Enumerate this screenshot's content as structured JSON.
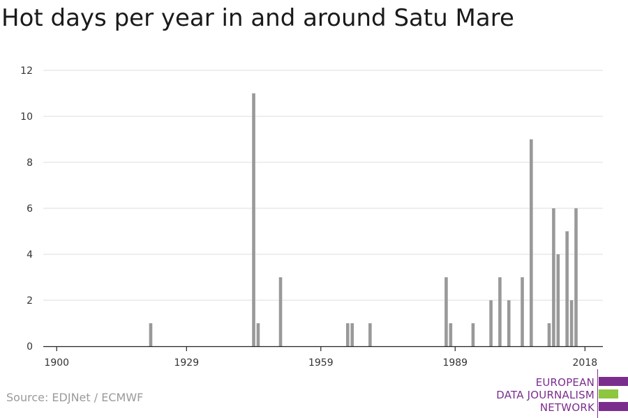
{
  "chart_data": {
    "type": "bar",
    "title": "Hot days per year in and around Satu Mare",
    "xlabel": "",
    "ylabel": "",
    "x_range": [
      1897,
      2022
    ],
    "ylim": [
      0,
      12
    ],
    "y_ticks": [
      0,
      2,
      4,
      6,
      8,
      10,
      12
    ],
    "x_ticks": [
      1900,
      1929,
      1959,
      1989,
      2018
    ],
    "grid": true,
    "bar_color": "#999999",
    "series": [
      {
        "x": [
          1921,
          1944,
          1945,
          1950,
          1965,
          1966,
          1970,
          1987,
          1988,
          1993,
          1997,
          1999,
          2001,
          2004,
          2006,
          2010,
          2011,
          2012,
          2014,
          2015,
          2016
        ],
        "values": [
          1,
          11,
          1,
          3,
          1,
          1,
          1,
          3,
          1,
          1,
          2,
          3,
          2,
          3,
          9,
          1,
          6,
          4,
          5,
          2,
          6
        ]
      }
    ]
  },
  "source": "Source: EDJNet / ECMWF",
  "logo": {
    "line1": "EUROPEAN",
    "line2": "DATA JOURNALISM",
    "line3": "NETWORK",
    "colors": {
      "purple": "#7b2d8e",
      "green": "#8dc63f"
    }
  }
}
